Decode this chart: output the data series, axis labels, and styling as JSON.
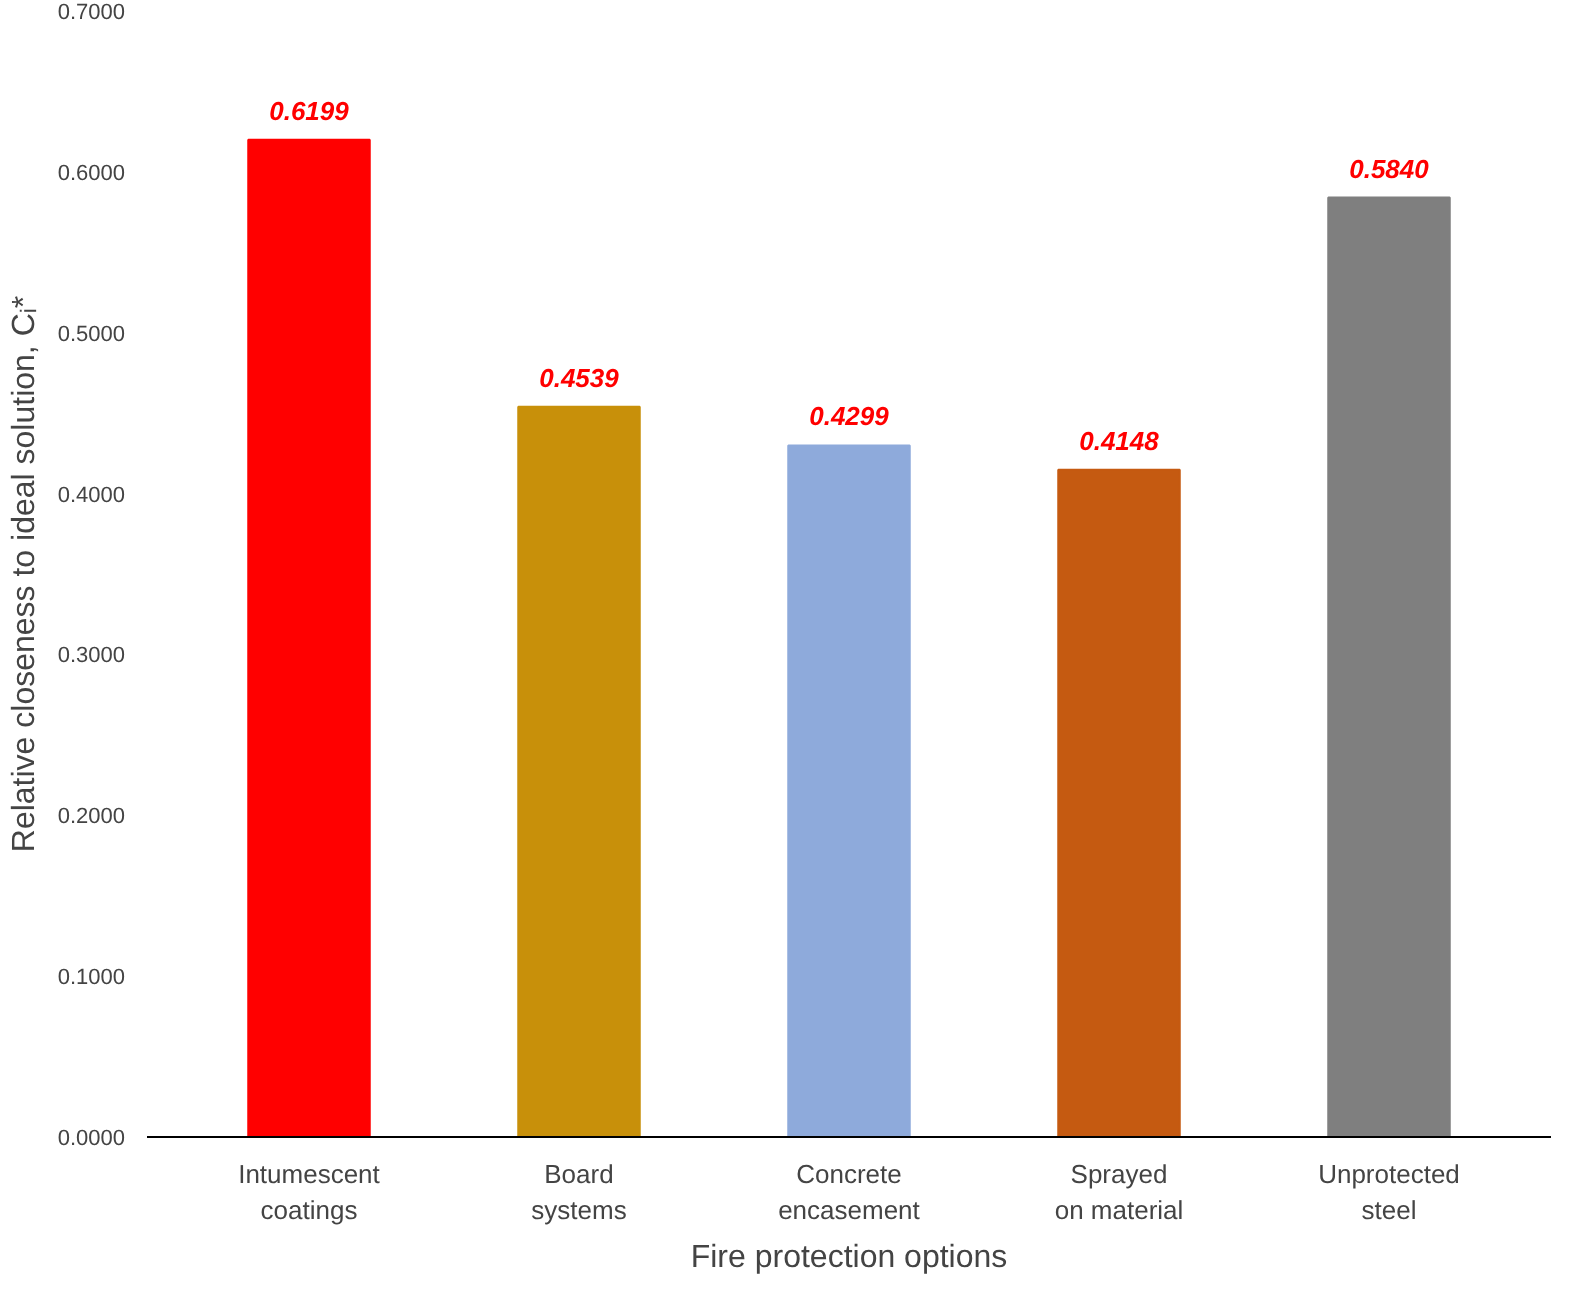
{
  "chart_data": {
    "type": "bar",
    "xlabel": "Fire protection options",
    "ylabel": "Relative closeness to ideal solution, Cᵢ*",
    "categories": [
      "Intumescent coatings",
      "Board systems",
      "Concrete encasement",
      "Sprayed on material",
      "Unprotected steel"
    ],
    "values": [
      0.6199,
      0.4539,
      0.4299,
      0.4148,
      0.584
    ],
    "colors": [
      "#ff0000",
      "#c8900a",
      "#8eaadb",
      "#c55a11",
      "#7f7f7f"
    ],
    "ylim": [
      0,
      0.7
    ],
    "yticks": [
      {
        "value": 0,
        "label": "0.0000"
      },
      {
        "value": 0.1,
        "label": "0.1000"
      },
      {
        "value": 0.2,
        "label": "0.2000"
      },
      {
        "value": 0.3,
        "label": "0.3000"
      },
      {
        "value": 0.4,
        "label": "0.4000"
      },
      {
        "value": 0.5,
        "label": "0.5000"
      },
      {
        "value": 0.6,
        "label": "0.6000"
      },
      {
        "value": 0.7,
        "label": "0.7000"
      }
    ],
    "grid": false,
    "value_labels": [
      "0.6199",
      "0.4539",
      "0.4299",
      "0.4148",
      "0.5840"
    ]
  }
}
